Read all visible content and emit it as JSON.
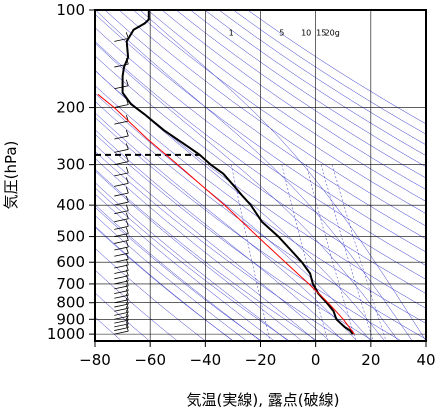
{
  "chart_data": {
    "type": "line",
    "title": "",
    "xlabel": "気温(実線), 露点(破線)",
    "ylabel": "気圧(hPa)",
    "xlim": [
      -80,
      40
    ],
    "ylim_hpa": [
      1050,
      100
    ],
    "y_scale": "log",
    "x_ticks": [
      "−80",
      "−60",
      "−40",
      "−20",
      "0",
      "20",
      "40"
    ],
    "x_tick_values": [
      -80,
      -60,
      -40,
      -20,
      0,
      20,
      40
    ],
    "y_ticks": [
      "100",
      "200",
      "300",
      "400",
      "500",
      "600",
      "700",
      "800",
      "900",
      "1000"
    ],
    "y_tick_values": [
      100,
      200,
      300,
      400,
      500,
      600,
      700,
      800,
      900,
      1000
    ],
    "mixing_ratio_labels": [
      "1",
      "5",
      "10",
      "15",
      "20g"
    ],
    "series": [
      {
        "kind": "temperature",
        "style": "solid",
        "color": "#000000",
        "points": [
          [
            13.5,
            1000
          ],
          [
            12.5,
            975
          ],
          [
            10.5,
            950
          ],
          [
            9.0,
            925
          ],
          [
            7.5,
            900
          ],
          [
            6.5,
            850
          ],
          [
            4.0,
            800
          ],
          [
            1.0,
            750
          ],
          [
            -1.0,
            700
          ],
          [
            -2.0,
            650
          ],
          [
            -5.0,
            600
          ],
          [
            -9.0,
            550
          ],
          [
            -13.5,
            500
          ],
          [
            -19.5,
            450
          ],
          [
            -23.5,
            400
          ],
          [
            -26.5,
            375
          ],
          [
            -29.5,
            350
          ],
          [
            -33.5,
            320
          ],
          [
            -38.0,
            300
          ],
          [
            -42.0,
            280
          ],
          [
            -46.0,
            265
          ],
          [
            -55.0,
            235
          ],
          [
            -62.0,
            210
          ],
          [
            -67.0,
            195
          ],
          [
            -70.0,
            180
          ],
          [
            -70.0,
            170
          ],
          [
            -70.0,
            160
          ],
          [
            -69.5,
            150
          ],
          [
            -68.0,
            140
          ],
          [
            -68.5,
            125
          ],
          [
            -66.0,
            115
          ],
          [
            -62.0,
            110
          ],
          [
            -60.5,
            107
          ],
          [
            -60.5,
            100
          ]
        ]
      },
      {
        "kind": "dewpoint",
        "style": "dashed",
        "color": "#000000",
        "points": [
          [
            -80,
            280
          ],
          [
            -42,
            280
          ]
        ]
      },
      {
        "kind": "parcel",
        "style": "solid",
        "color": "#ff0000",
        "points": [
          [
            14,
            1000
          ],
          [
            10,
            900
          ],
          [
            4.5,
            800
          ],
          [
            -2.5,
            700
          ],
          [
            -11,
            600
          ],
          [
            -21,
            500
          ],
          [
            -33,
            400
          ],
          [
            -41,
            350
          ],
          [
            -50,
            300
          ],
          [
            -61,
            250
          ],
          [
            -73,
            200
          ],
          [
            -79,
            182
          ]
        ]
      }
    ],
    "wind_barbs_x": -73,
    "grid_color": "#000000",
    "background_line_color": "#3333cc"
  }
}
